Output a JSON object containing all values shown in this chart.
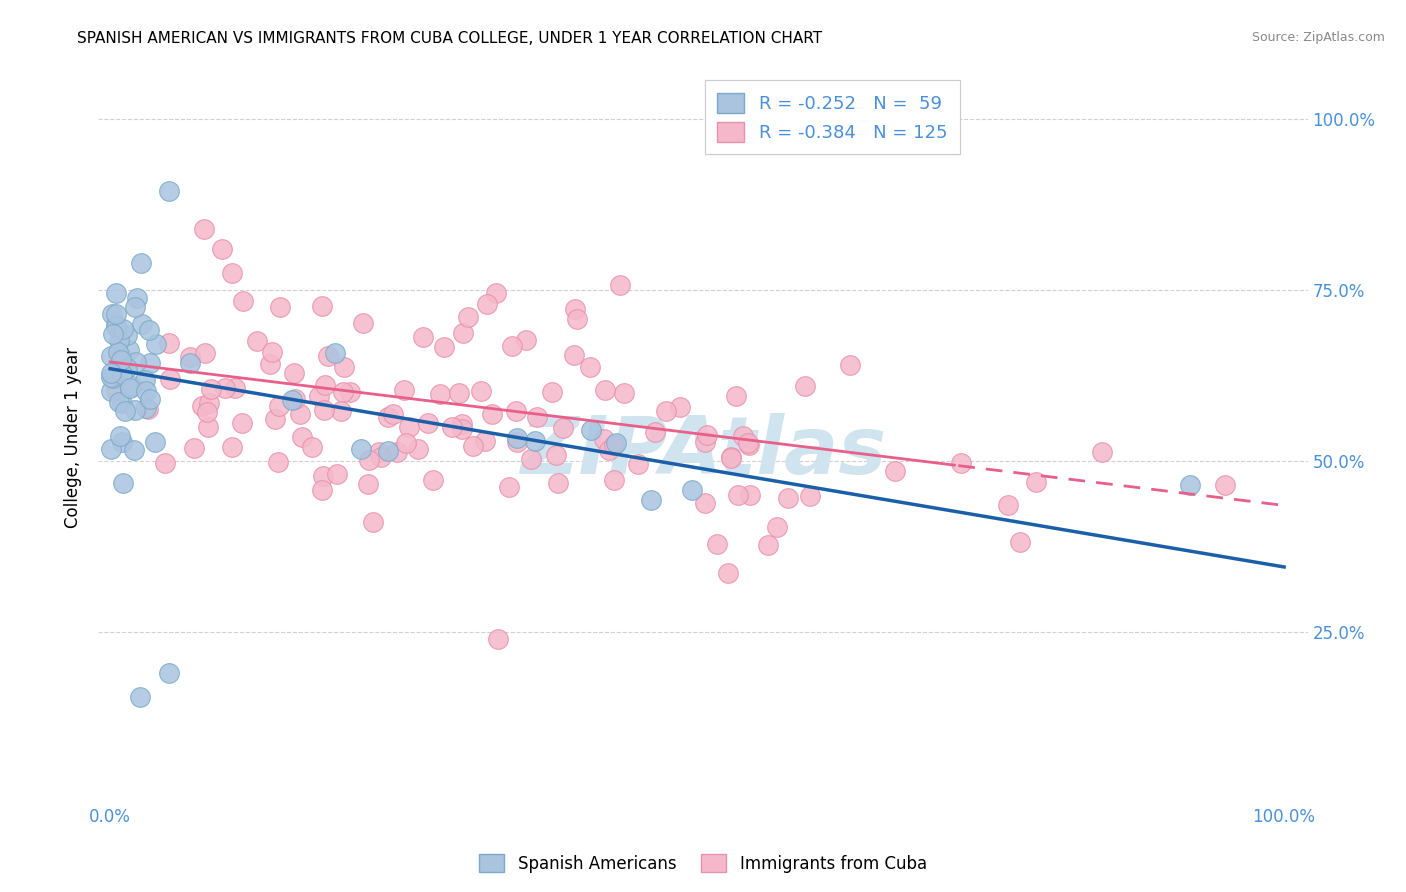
{
  "title": "SPANISH AMERICAN VS IMMIGRANTS FROM CUBA COLLEGE, UNDER 1 YEAR CORRELATION CHART",
  "source": "Source: ZipAtlas.com",
  "ylabel": "College, Under 1 year",
  "r_blue": -0.252,
  "n_blue": 59,
  "r_pink": -0.384,
  "n_pink": 125,
  "blue_color": "#aac4e0",
  "pink_color": "#f5b8cb",
  "blue_edge": "#7aaac8",
  "pink_edge": "#e890aa",
  "blue_line_color": "#1a5fa8",
  "pink_line_color": "#e8608a",
  "legend_blue_label": "Spanish Americans",
  "legend_pink_label": "Immigrants from Cuba",
  "watermark": "ZIPAtlas",
  "watermark_color": "#d0e4f0",
  "title_fontsize": 11,
  "source_fontsize": 9,
  "axis_color": "#4a90d9",
  "blue_line_start_y": 0.635,
  "blue_line_end_y": 0.345,
  "pink_line_start_y": 0.645,
  "pink_line_end_y": 0.435,
  "xlim": [
    0.0,
    1.0
  ],
  "ylim": [
    0.0,
    1.05
  ],
  "yticks": [
    0.25,
    0.5,
    0.75,
    1.0
  ],
  "ytick_labels": [
    "25.0%",
    "50.0%",
    "75.0%",
    "100.0%"
  ],
  "xtick_labels": [
    "0.0%",
    "100.0%"
  ],
  "xtick_values": [
    0.0,
    1.0
  ]
}
